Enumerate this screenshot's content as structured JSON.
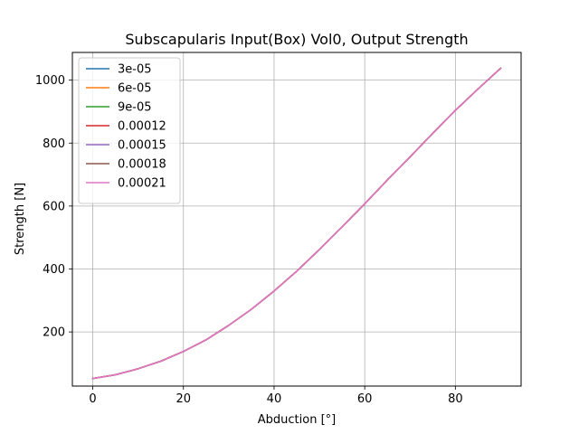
{
  "chart_data": {
    "type": "line",
    "title": "Subscapularis Input(Box) Vol0, Output Strength",
    "xlabel": "Abduction [°]",
    "ylabel": "Strength [N]",
    "xlim": [
      -4.5,
      94.5
    ],
    "ylim": [
      28,
      1088
    ],
    "xticks": [
      0,
      20,
      40,
      60,
      80
    ],
    "yticks": [
      200,
      400,
      600,
      800,
      1000
    ],
    "grid": true,
    "legend_position": "upper-left",
    "x": [
      0,
      5,
      10,
      15,
      20,
      25,
      30,
      35,
      40,
      45,
      50,
      55,
      60,
      65,
      70,
      75,
      80,
      85,
      90
    ],
    "series": [
      {
        "name": "3e-05",
        "color": "#1f77b4",
        "values": [
          52,
          64,
          83,
          107,
          138,
          175,
          221,
          272,
          330,
          393,
          462,
          534,
          607,
          683,
          756,
          831,
          904,
          972,
          1038
        ]
      },
      {
        "name": "6e-05",
        "color": "#ff7f0e",
        "values": [
          52,
          64,
          83,
          107,
          138,
          175,
          221,
          272,
          330,
          393,
          462,
          534,
          607,
          683,
          756,
          831,
          904,
          972,
          1038
        ]
      },
      {
        "name": "9e-05",
        "color": "#2ca02c",
        "values": [
          52,
          64,
          83,
          107,
          138,
          175,
          221,
          272,
          330,
          393,
          462,
          534,
          607,
          683,
          756,
          831,
          904,
          972,
          1038
        ]
      },
      {
        "name": "0.00012",
        "color": "#d62728",
        "values": [
          52,
          64,
          83,
          107,
          138,
          175,
          221,
          272,
          330,
          393,
          462,
          534,
          607,
          683,
          756,
          831,
          904,
          972,
          1038
        ]
      },
      {
        "name": "0.00015",
        "color": "#9467bd",
        "values": [
          52,
          64,
          83,
          107,
          138,
          175,
          221,
          272,
          330,
          393,
          462,
          534,
          607,
          683,
          756,
          831,
          904,
          972,
          1038
        ]
      },
      {
        "name": "0.00018",
        "color": "#8c564b",
        "values": [
          52,
          64,
          83,
          107,
          138,
          175,
          221,
          272,
          330,
          393,
          462,
          534,
          607,
          683,
          756,
          831,
          904,
          972,
          1038
        ]
      },
      {
        "name": "0.00021",
        "color": "#e377c2",
        "values": [
          52,
          64,
          83,
          107,
          138,
          175,
          221,
          272,
          330,
          393,
          462,
          534,
          607,
          683,
          756,
          831,
          904,
          972,
          1038
        ]
      }
    ]
  }
}
